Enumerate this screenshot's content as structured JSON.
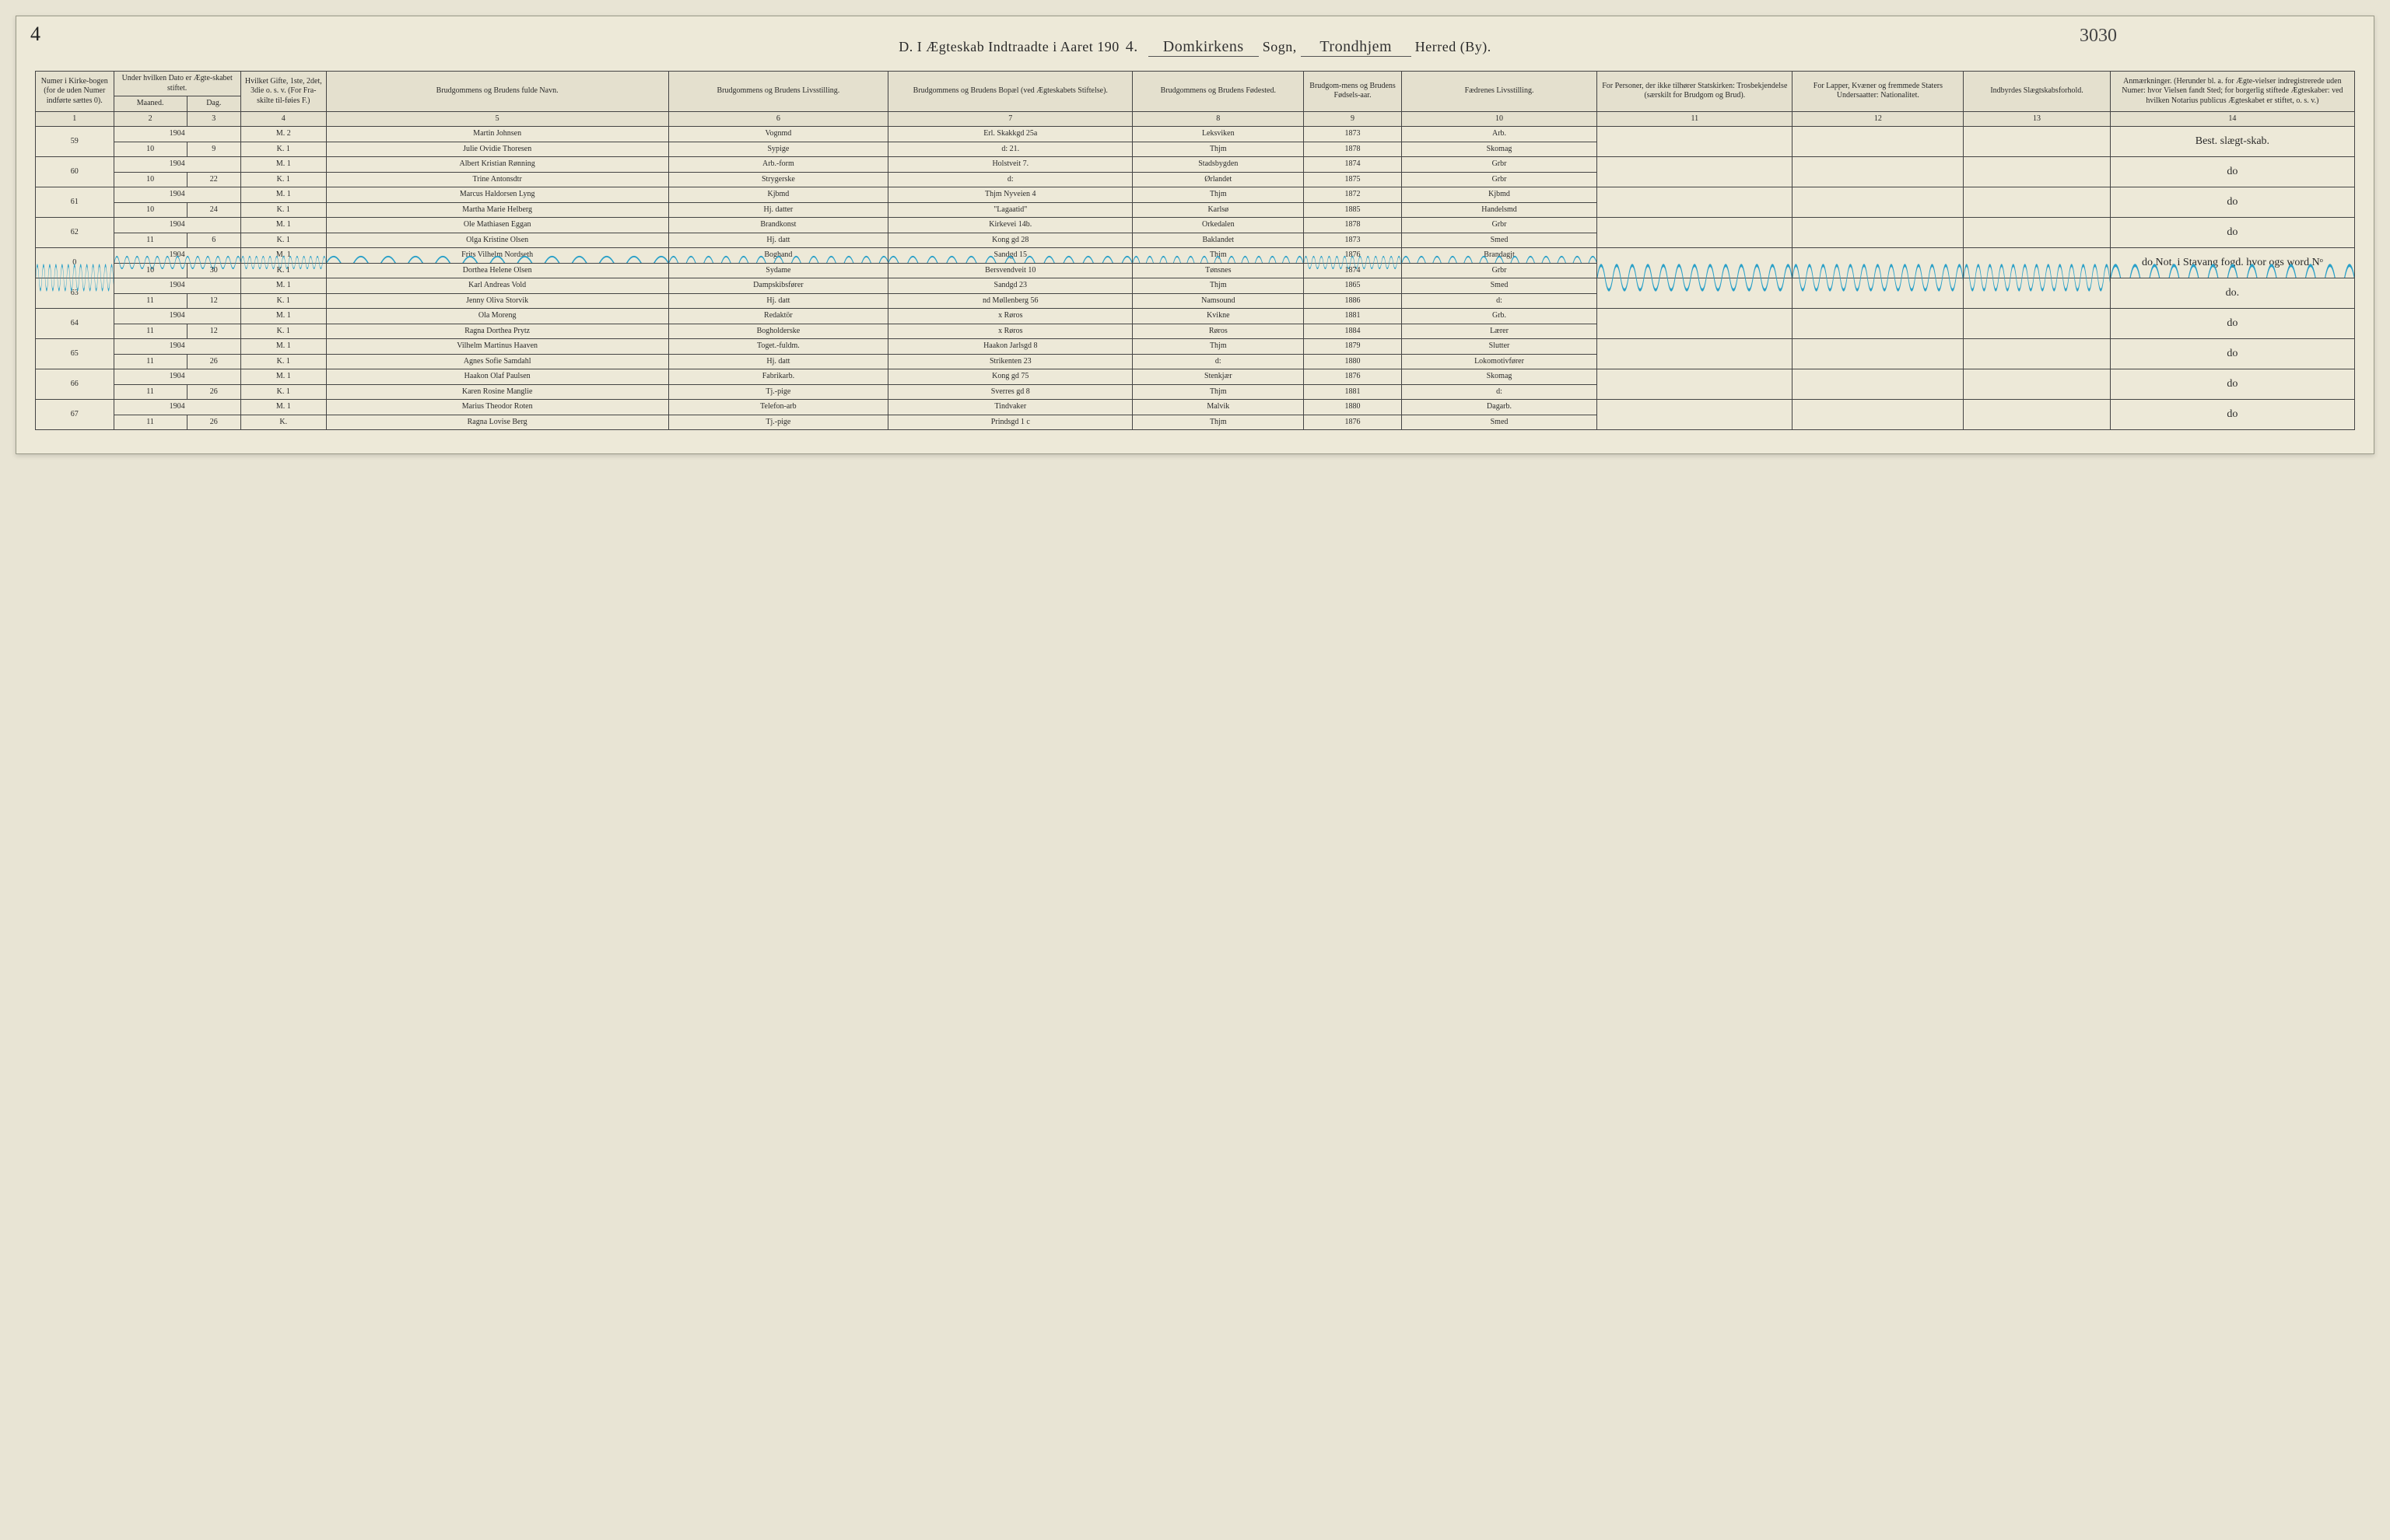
{
  "corner_number": "4",
  "header_number": "3030",
  "title": {
    "prefix": "D.  I Ægteskab Indtraadte i Aaret 190",
    "year_digit": "4.",
    "parish_word": "Sogn,",
    "parish_value": "Domkirkens",
    "district_word": "Herred (By).",
    "district_value": "Trondhjem"
  },
  "headers": {
    "h1": "Numer i Kirke-bogen (for de uden Numer indførte sættes 0).",
    "h2a": "Under hvilken Dato er Ægte-skabet stiftet.",
    "h2m": "Maaned.",
    "h2d": "Dag.",
    "h3": "Hvilket Gifte, 1ste, 2det, 3die o. s. v. (For Fra-skilte til-føies F.)",
    "h4": "Brudgommens og Brudens fulde Navn.",
    "h5": "Brudgommens og Brudens Livsstilling.",
    "h6": "Brudgommens og Brudens Bopæl (ved Ægteskabets Stiftelse).",
    "h7": "Brudgommens og Brudens Fødested.",
    "h8": "Brudgom-mens og Brudens Fødsels-aar.",
    "h9": "Fædrenes Livsstilling.",
    "h10": "For Personer, der ikke tilhører Statskirken: Trosbekjendelse (særskilt for Brudgom og Brud).",
    "h11": "For Lapper, Kvæner og fremmede Staters Undersaatter: Nationalitet.",
    "h12": "Indbyrdes Slægtskabsforhold.",
    "h13": "Anmærkninger. (Herunder bl. a. for Ægte-vielser indregistrerede uden Numer: hvor Vielsen fandt Sted; for borgerlig stiftede Ægteskaber: ved hvilken Notarius publicus Ægteskabet er stiftet, o. s. v.)"
  },
  "colnums": [
    "1",
    "2",
    "3",
    "4",
    "5",
    "6",
    "7",
    "8",
    "9",
    "10",
    "11",
    "12",
    "13",
    "14"
  ],
  "strike_color": "#2aa0c8",
  "rows": [
    {
      "num": "59",
      "year": "1904",
      "month": "10",
      "day": "9",
      "m": {
        "gifte": "2",
        "name": "Martin Johnsen",
        "occ": "Vognmd",
        "addr": "Erl. Skakkgd 25a",
        "birthplace": "Leksviken",
        "byear": "1873",
        "father": "Arb."
      },
      "k": {
        "gifte": "1",
        "name": "Julie Ovidie Thoresen",
        "occ": "Sypige",
        "addr": "d:    21.",
        "birthplace": "Thjm",
        "byear": "1878",
        "father": "Skomag"
      },
      "note": "Best. slægt-skab."
    },
    {
      "num": "60",
      "year": "1904",
      "month": "10",
      "day": "22",
      "m": {
        "gifte": "1",
        "name": "Albert Kristian Rønning",
        "occ": "Arb.-form",
        "addr": "Holstveit 7.",
        "birthplace": "Stadsbygden",
        "byear": "1874",
        "father": "Grbr"
      },
      "k": {
        "gifte": "1",
        "name": "Trine Antonsdtr",
        "occ": "Strygerske",
        "addr": "d:",
        "birthplace": "Ørlandet",
        "byear": "1875",
        "father": "Grbr"
      },
      "note": "do"
    },
    {
      "num": "61",
      "year": "1904",
      "month": "10",
      "day": "24",
      "m": {
        "gifte": "1",
        "name": "Marcus Haldorsen Lyng",
        "occ": "Kjbmd",
        "addr": "Thjm Nyveien 4",
        "birthplace": "Thjm",
        "byear": "1872",
        "father": "Kjbmd"
      },
      "k": {
        "gifte": "1",
        "name": "Martha Marie Helberg",
        "occ": "Hj. datter",
        "addr": "\"Lagaatid\"",
        "birthplace": "Karlsø",
        "byear": "1885",
        "father": "Handelsmd"
      },
      "note": "do"
    },
    {
      "num": "62",
      "year": "1904",
      "month": "11",
      "day": "6",
      "m": {
        "gifte": "1",
        "name": "Ole Mathiasen Eggan",
        "occ": "Brandkonst",
        "addr": "Kirkevei 14b.",
        "birthplace": "Orkedalen",
        "byear": "1878",
        "father": "Grbr"
      },
      "k": {
        "gifte": "1",
        "name": "Olga Kristine Olsen",
        "occ": "Hj. datt",
        "addr": "Kong gd 28",
        "birthplace": "Baklandet",
        "byear": "1873",
        "father": "Smed"
      },
      "note": "do"
    },
    {
      "num": "0",
      "year": "1904",
      "month": "10",
      "day": "30",
      "struck": true,
      "m": {
        "gifte": "1",
        "name": "Frits Vilhelm Nordseth",
        "occ": "Boghand",
        "addr": "Sandgd 15",
        "birthplace": "Thjm",
        "byear": "1876",
        "father": "Brandagjt"
      },
      "k": {
        "gifte": "1",
        "name": "Dorthea Helene Olsen",
        "occ": "Sydame",
        "addr": "Bersvendveit 10",
        "birthplace": "Tønsnes",
        "byear": "1874",
        "father": "Grbr"
      },
      "note": "do   Not. i Stavang fogd. hvor ogs word Nᵒ"
    },
    {
      "num": "63",
      "year": "1904",
      "month": "11",
      "day": "12",
      "m": {
        "gifte": "1",
        "name": "Karl Andreas Vold",
        "occ": "Dampskibsfører",
        "addr": "Sandgd 23",
        "birthplace": "Thjm",
        "byear": "1865",
        "father": "Smed"
      },
      "k": {
        "gifte": "1",
        "name": "Jenny Oliva Storvik",
        "occ": "Hj. datt",
        "addr": "nd Møllenberg 56",
        "birthplace": "Namsound",
        "byear": "1886",
        "father": "d:"
      },
      "note": "do."
    },
    {
      "num": "64",
      "year": "1904",
      "month": "11",
      "day": "12",
      "m": {
        "gifte": "1",
        "name": "Ola Moreng",
        "occ": "Redaktör",
        "addr": "x  Røros",
        "birthplace": "Kvikne",
        "byear": "1881",
        "father": "Grb."
      },
      "k": {
        "gifte": "1",
        "name": "Ragna Dorthea Prytz",
        "occ": "Bogholderske",
        "addr": "x  Røros",
        "birthplace": "Røros",
        "byear": "1884",
        "father": "Lærer"
      },
      "note": "do"
    },
    {
      "num": "65",
      "year": "1904",
      "month": "11",
      "day": "26",
      "m": {
        "gifte": "1",
        "name": "Vilhelm Martinus Haaven",
        "occ": "Toget.-fuldm.",
        "addr": "Haakon Jarlsgd 8",
        "birthplace": "Thjm",
        "byear": "1879",
        "father": "Slutter"
      },
      "k": {
        "gifte": "1",
        "name": "Agnes Sofie Samdahl",
        "occ": "Hj. datt",
        "addr": "Strikenten 23",
        "birthplace": "d:",
        "byear": "1880",
        "father": "Lokomotivfører"
      },
      "note": "do"
    },
    {
      "num": "66",
      "year": "1904",
      "month": "11",
      "day": "26",
      "m": {
        "gifte": "1",
        "name": "Haakon Olaf Paulsen",
        "occ": "Fabrikarb.",
        "addr": "Kong gd 75",
        "birthplace": "Stenkjær",
        "byear": "1876",
        "father": "Skomag"
      },
      "k": {
        "gifte": "1",
        "name": "Karen Rosine Manglie",
        "occ": "Tj.-pige",
        "addr": "Sverres gd 8",
        "birthplace": "Thjm",
        "byear": "1881",
        "father": "d:"
      },
      "note": "do"
    },
    {
      "num": "67",
      "year": "1904",
      "month": "11",
      "day": "26",
      "m": {
        "gifte": "1",
        "name": "Marius Theodor Roten",
        "occ": "Telefon-arb",
        "addr": "Tindvaker",
        "birthplace": "Malvik",
        "byear": "1880",
        "father": "Dagarb."
      },
      "k": {
        "gifte": "",
        "name": "Ragna Lovise Berg",
        "occ": "Tj.-pige",
        "addr": "Prindsgd 1 c",
        "birthplace": "Thjm",
        "byear": "1876",
        "father": "Smed"
      },
      "note": "do"
    }
  ]
}
